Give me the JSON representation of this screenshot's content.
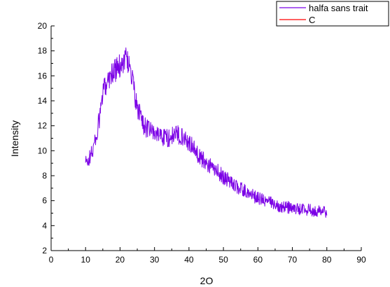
{
  "chart_data": {
    "type": "line",
    "xlabel": "2O",
    "ylabel": "Intensity",
    "xlim": [
      0,
      90
    ],
    "ylim": [
      2,
      20
    ],
    "xticks": [
      0,
      10,
      20,
      30,
      40,
      50,
      60,
      70,
      80,
      90
    ],
    "yticks": [
      2,
      4,
      6,
      8,
      10,
      12,
      14,
      16,
      18,
      20
    ],
    "grid": false,
    "legend_position": "top-right",
    "series": [
      {
        "name": "halfa sans trait",
        "color": "#7b00e6",
        "x": [
          10,
          11,
          12,
          13,
          14,
          15,
          16,
          17,
          18,
          19,
          20,
          21,
          22,
          23,
          24,
          25,
          26,
          27,
          28,
          29,
          30,
          32,
          34,
          36,
          38,
          40,
          42,
          44,
          46,
          48,
          50,
          52,
          54,
          56,
          58,
          60,
          62,
          64,
          66,
          68,
          70,
          72,
          74,
          76,
          78,
          80
        ],
        "y": [
          9.0,
          9.3,
          10.0,
          11.0,
          12.5,
          14.5,
          15.5,
          16.0,
          16.3,
          16.5,
          16.8,
          17.2,
          17.5,
          16.5,
          15.0,
          13.2,
          12.9,
          12.0,
          11.7,
          11.6,
          11.4,
          11.2,
          11.0,
          11.3,
          11.2,
          10.7,
          9.9,
          9.3,
          8.8,
          8.4,
          7.9,
          7.5,
          7.1,
          6.8,
          6.5,
          6.2,
          6.0,
          5.8,
          5.6,
          5.5,
          5.4,
          5.3,
          5.3,
          5.2,
          5.2,
          5.0
        ]
      },
      {
        "name": "C",
        "color": "#ff0000",
        "x": [],
        "y": []
      }
    ]
  }
}
